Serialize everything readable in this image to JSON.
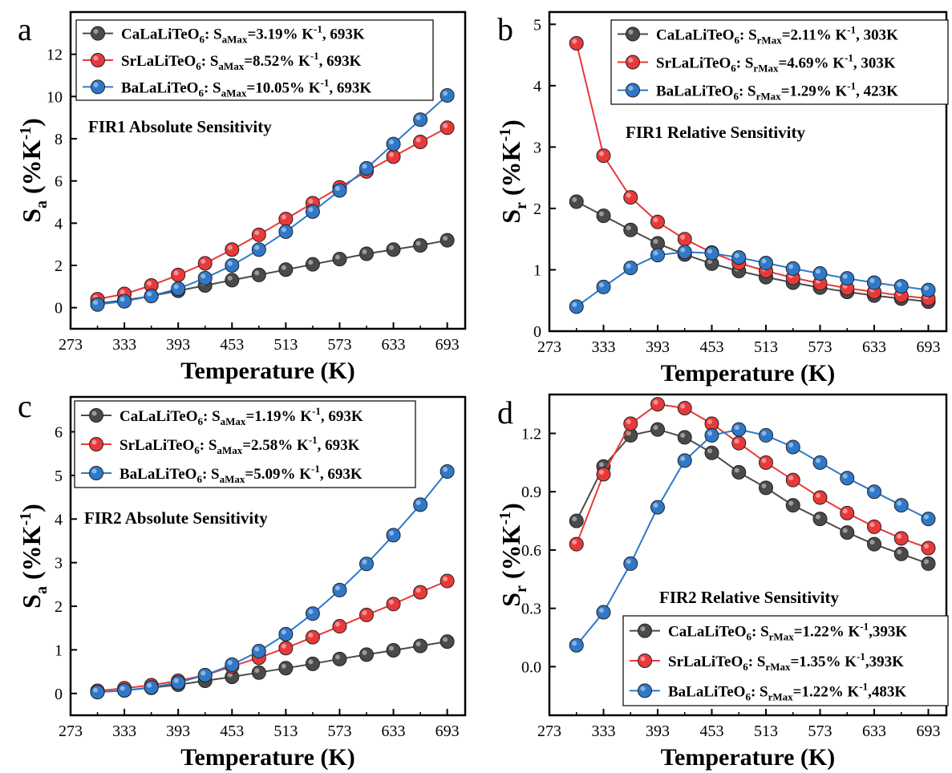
{
  "colors": {
    "series": [
      "#4a4a4a",
      "#e8393a",
      "#2f78c8"
    ],
    "axis": "#000000"
  },
  "chart_data": [
    {
      "panel": "a",
      "type": "line",
      "title": "FIR1  Absolute Sensitivity",
      "xlabel": "Temperature (K)",
      "ylabel_main": "S",
      "ylabel_sub": "a",
      "ylabel_unit": "(%K",
      "ylabel_sup": "-1",
      "ylabel_close": ")",
      "xlim": [
        273,
        713
      ],
      "ylim": [
        -1,
        14
      ],
      "xticks": [
        273,
        333,
        393,
        453,
        513,
        573,
        633,
        693
      ],
      "yticks": [
        0,
        2,
        4,
        6,
        8,
        10,
        12
      ],
      "grid": false,
      "legend_position": "top-left",
      "x": [
        303,
        333,
        363,
        393,
        423,
        453,
        483,
        513,
        543,
        573,
        603,
        633,
        663,
        693
      ],
      "series": [
        {
          "name": "CaLaLiTeO6",
          "label": {
            "compound": "CaLaLiTeO",
            "compound_sub": "6",
            "sym": "S",
            "sym_sub": "aMax",
            "value": "=3.19% K",
            "value_sup": "-1",
            "tail": ",  693K"
          },
          "values": [
            0.2,
            0.35,
            0.55,
            0.8,
            1.05,
            1.3,
            1.55,
            1.8,
            2.05,
            2.3,
            2.55,
            2.75,
            2.95,
            3.19
          ]
        },
        {
          "name": "SrLaLiTeO6",
          "label": {
            "compound": "SrLaLiTeO",
            "compound_sub": "6",
            "sym": "S",
            "sym_sub": "aMax",
            "value": "=8.52% K",
            "value_sup": "-1",
            "tail": ",  693K"
          },
          "values": [
            0.4,
            0.65,
            1.05,
            1.55,
            2.1,
            2.75,
            3.45,
            4.2,
            4.95,
            5.7,
            6.45,
            7.15,
            7.85,
            8.52
          ]
        },
        {
          "name": "BaLaLiTeO6",
          "label": {
            "compound": "BaLaLiTeO",
            "compound_sub": "6",
            "sym": "S",
            "sym_sub": "aMax",
            "value": "=10.05% K",
            "value_sup": "-1",
            "tail": ", 693K"
          },
          "values": [
            0.15,
            0.3,
            0.55,
            0.9,
            1.4,
            2.0,
            2.75,
            3.6,
            4.55,
            5.55,
            6.6,
            7.75,
            8.9,
            10.05
          ]
        }
      ]
    },
    {
      "panel": "b",
      "type": "line",
      "title": "FIR1  Relative Sensitivity",
      "xlabel": "Temperature (K)",
      "ylabel_main": "S",
      "ylabel_sub": "r",
      "ylabel_unit": "(%K",
      "ylabel_sup": "-1",
      "ylabel_close": ")",
      "xlim": [
        273,
        713
      ],
      "ylim": [
        0,
        5.2
      ],
      "xticks": [
        273,
        333,
        393,
        453,
        513,
        573,
        633,
        693
      ],
      "yticks": [
        0,
        1,
        2,
        3,
        4,
        5
      ],
      "grid": false,
      "legend_position": "top-right",
      "x": [
        303,
        333,
        363,
        393,
        423,
        453,
        483,
        513,
        543,
        573,
        603,
        633,
        663,
        693
      ],
      "series": [
        {
          "name": "CaLaLiTeO6",
          "label": {
            "compound": "CaLaLiTeO",
            "compound_sub": "6",
            "sym": "S",
            "sym_sub": "rMax",
            "value": "=2.11% K",
            "value_sup": "-1",
            "tail": ", 303K"
          },
          "values": [
            2.11,
            1.88,
            1.65,
            1.43,
            1.25,
            1.1,
            0.98,
            0.88,
            0.79,
            0.71,
            0.64,
            0.58,
            0.53,
            0.48
          ]
        },
        {
          "name": "SrLaLiTeO6",
          "label": {
            "compound": "SrLaLiTeO",
            "compound_sub": "6",
            "sym": "S",
            "sym_sub": "rMax",
            "value": "=4.69% K",
            "value_sup": "-1",
            "tail": ", 303K"
          },
          "values": [
            4.69,
            2.86,
            2.18,
            1.78,
            1.5,
            1.28,
            1.11,
            0.98,
            0.87,
            0.78,
            0.7,
            0.64,
            0.58,
            0.53
          ]
        },
        {
          "name": "BaLaLiTeO6",
          "label": {
            "compound": "BaLaLiTeO",
            "compound_sub": "6",
            "sym": "S",
            "sym_sub": "rMax",
            "value": "=1.29% K",
            "value_sup": "-1",
            "tail": ", 423K"
          },
          "values": [
            0.4,
            0.72,
            1.03,
            1.24,
            1.29,
            1.27,
            1.2,
            1.11,
            1.02,
            0.94,
            0.86,
            0.79,
            0.73,
            0.67
          ]
        }
      ]
    },
    {
      "panel": "c",
      "type": "line",
      "title": "FIR2  Absolute Sensitivity",
      "xlabel": "Temperature (K)",
      "ylabel_main": "S",
      "ylabel_sub": "a",
      "ylabel_unit": "(%K",
      "ylabel_sup": "-1",
      "ylabel_close": ")",
      "xlim": [
        273,
        713
      ],
      "ylim": [
        -0.5,
        6.8
      ],
      "xticks": [
        273,
        333,
        393,
        453,
        513,
        573,
        633,
        693
      ],
      "yticks": [
        0,
        1,
        2,
        3,
        4,
        5,
        6
      ],
      "grid": false,
      "legend_position": "top-left",
      "x": [
        303,
        333,
        363,
        393,
        423,
        453,
        483,
        513,
        543,
        573,
        603,
        633,
        663,
        693
      ],
      "series": [
        {
          "name": "CaLaLiTeO6",
          "label": {
            "compound": "CaLaLiTeO",
            "compound_sub": "6",
            "sym": "S",
            "sym_sub": "aMax",
            "value": "=1.19% K",
            "value_sup": "-1",
            "tail": ", 693K"
          },
          "values": [
            0.03,
            0.07,
            0.13,
            0.2,
            0.29,
            0.38,
            0.48,
            0.58,
            0.68,
            0.79,
            0.89,
            0.99,
            1.09,
            1.19
          ]
        },
        {
          "name": "SrLaLiTeO6",
          "label": {
            "compound": "SrLaLiTeO",
            "compound_sub": "6",
            "sym": "S",
            "sym_sub": "aMax",
            "value": "=2.58% K",
            "value_sup": "-1",
            "tail": ", 693K"
          },
          "values": [
            0.06,
            0.12,
            0.19,
            0.29,
            0.42,
            0.62,
            0.82,
            1.04,
            1.29,
            1.54,
            1.8,
            2.05,
            2.32,
            2.58
          ]
        },
        {
          "name": "BaLaLiTeO6",
          "label": {
            "compound": "BaLaLiTeO",
            "compound_sub": "6",
            "sym": "S",
            "sym_sub": "aMax",
            "value": "=5.09% K",
            "value_sup": "-1",
            "tail": ", 693K"
          },
          "values": [
            0.03,
            0.07,
            0.14,
            0.25,
            0.42,
            0.66,
            0.97,
            1.36,
            1.83,
            2.37,
            2.97,
            3.63,
            4.33,
            5.09
          ]
        }
      ]
    },
    {
      "panel": "d",
      "type": "line",
      "title": "FIR2  Relative Sensitivity",
      "xlabel": "Temperature (K)",
      "ylabel_main": "S",
      "ylabel_sub": "r",
      "ylabel_unit": "(%K",
      "ylabel_sup": "-1",
      "ylabel_close": ")",
      "xlim": [
        273,
        713
      ],
      "ylim": [
        -0.25,
        1.4
      ],
      "xticks": [
        273,
        333,
        393,
        453,
        513,
        573,
        633,
        693
      ],
      "yticks": [
        0.0,
        0.3,
        0.6,
        0.9,
        1.2
      ],
      "ytick_labels": [
        "0.0",
        "0.3",
        "0.6",
        "0.9",
        "1.2"
      ],
      "grid": false,
      "legend_position": "bottom-right",
      "x": [
        303,
        333,
        363,
        393,
        423,
        453,
        483,
        513,
        543,
        573,
        603,
        633,
        663,
        693
      ],
      "series": [
        {
          "name": "CaLaLiTeO6",
          "label": {
            "compound": "CaLaLiTeO",
            "compound_sub": "6",
            "sym": "S",
            "sym_sub": "rMax",
            "value": "=1.22% K",
            "value_sup": "-1",
            "tail": ",393K"
          },
          "values": [
            0.75,
            1.03,
            1.19,
            1.22,
            1.18,
            1.1,
            1.0,
            0.92,
            0.83,
            0.76,
            0.69,
            0.63,
            0.58,
            0.53
          ]
        },
        {
          "name": "SrLaLiTeO6",
          "label": {
            "compound": "SrLaLiTeO",
            "compound_sub": "6",
            "sym": "S",
            "sym_sub": "rMax",
            "value": "=1.35% K",
            "value_sup": "-1",
            "tail": ",393K"
          },
          "values": [
            0.63,
            0.99,
            1.25,
            1.35,
            1.33,
            1.25,
            1.15,
            1.05,
            0.96,
            0.87,
            0.79,
            0.72,
            0.66,
            0.61
          ]
        },
        {
          "name": "BaLaLiTeO6",
          "label": {
            "compound": "BaLaLiTeO",
            "compound_sub": "6",
            "sym": "S",
            "sym_sub": "rMax",
            "value": "=1.22% K",
            "value_sup": "-1",
            "tail": ",483K"
          },
          "values": [
            0.11,
            0.28,
            0.53,
            0.82,
            1.06,
            1.19,
            1.22,
            1.19,
            1.13,
            1.05,
            0.97,
            0.9,
            0.83,
            0.76
          ]
        }
      ]
    }
  ]
}
